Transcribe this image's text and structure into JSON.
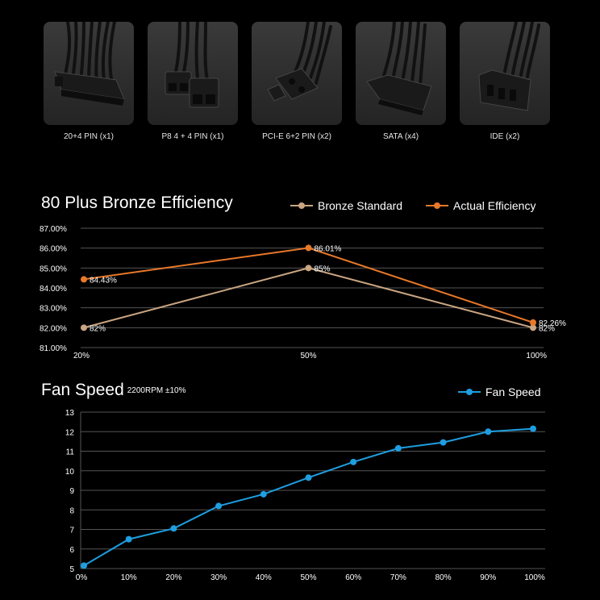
{
  "connectors": [
    {
      "label": "20+4 PIN (x1)",
      "icon": "atx-24pin-connector-icon"
    },
    {
      "label": "P8 4 + 4 PIN (x1)",
      "icon": "eps-8pin-connector-icon"
    },
    {
      "label": "PCI-E 6+2 PIN (x2)",
      "icon": "pcie-8pin-connector-icon"
    },
    {
      "label": "SATA (x4)",
      "icon": "sata-connector-icon"
    },
    {
      "label": "IDE (x2)",
      "icon": "molex-ide-connector-icon"
    }
  ],
  "colors": {
    "bronze": "#c9a582",
    "actual": "#e8782a",
    "fan": "#1e9ee0",
    "grid": "#555555"
  },
  "chart_data": [
    {
      "type": "line",
      "title": "80 Plus Bronze Efficiency",
      "categories": [
        "20%",
        "50%",
        "100%"
      ],
      "y_ticks": [
        "87.00%",
        "86.00%",
        "85.00%",
        "84.00%",
        "83.00%",
        "82.00%",
        "81.00%"
      ],
      "ylim": [
        81,
        87
      ],
      "legend_position": "top-right",
      "series": [
        {
          "name": "Bronze Standard",
          "values": [
            82,
            85,
            82
          ],
          "labels": [
            "82%",
            "85%",
            "82%"
          ]
        },
        {
          "name": "Actual Efficiency",
          "values": [
            84.43,
            86.01,
            82.26
          ],
          "labels": [
            "84.43%",
            "86.01%",
            "82.26%"
          ]
        }
      ]
    },
    {
      "type": "line",
      "title": "Fan Speed",
      "subtitle": "2200RPM ±10%",
      "categories": [
        "0%",
        "10%",
        "20%",
        "30%",
        "40%",
        "50%",
        "60%",
        "70%",
        "80%",
        "90%",
        "100%"
      ],
      "y_ticks": [
        "13",
        "12",
        "11",
        "10",
        "9",
        "8",
        "7",
        "6",
        "5"
      ],
      "ylim": [
        5,
        13
      ],
      "legend_position": "top-right",
      "series": [
        {
          "name": "Fan Speed",
          "values": [
            5.15,
            6.5,
            7.05,
            8.2,
            8.8,
            9.65,
            10.45,
            11.15,
            11.45,
            12.0,
            12.15
          ]
        }
      ]
    }
  ]
}
